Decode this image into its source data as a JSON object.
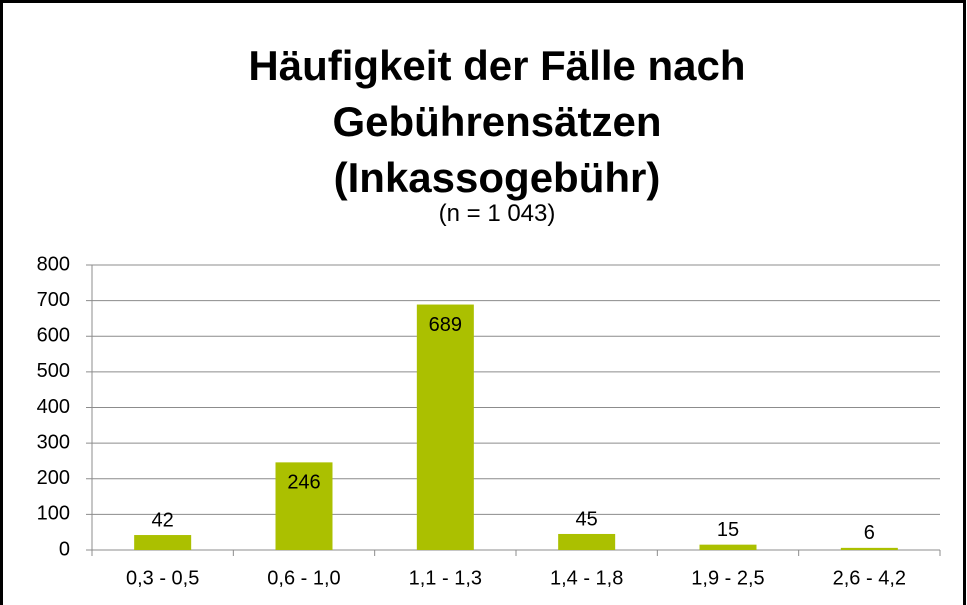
{
  "chart_data": {
    "type": "bar",
    "title": "Häufigkeit der Fälle nach Gebührensätzen (Inkassogebühr)",
    "subtitle": "(n = 1 043)",
    "categories": [
      "0,3 - 0,5",
      "0,6 - 1,0",
      "1,1 - 1,3",
      "1,4 - 1,8",
      "1,9 - 2,5",
      "2,6 - 4,2"
    ],
    "values": [
      42,
      246,
      689,
      45,
      15,
      6
    ],
    "color": "#abc000",
    "ylim": [
      0,
      800
    ],
    "yticks": [
      0,
      100,
      200,
      300,
      400,
      500,
      600,
      700,
      800
    ],
    "grid": true
  }
}
